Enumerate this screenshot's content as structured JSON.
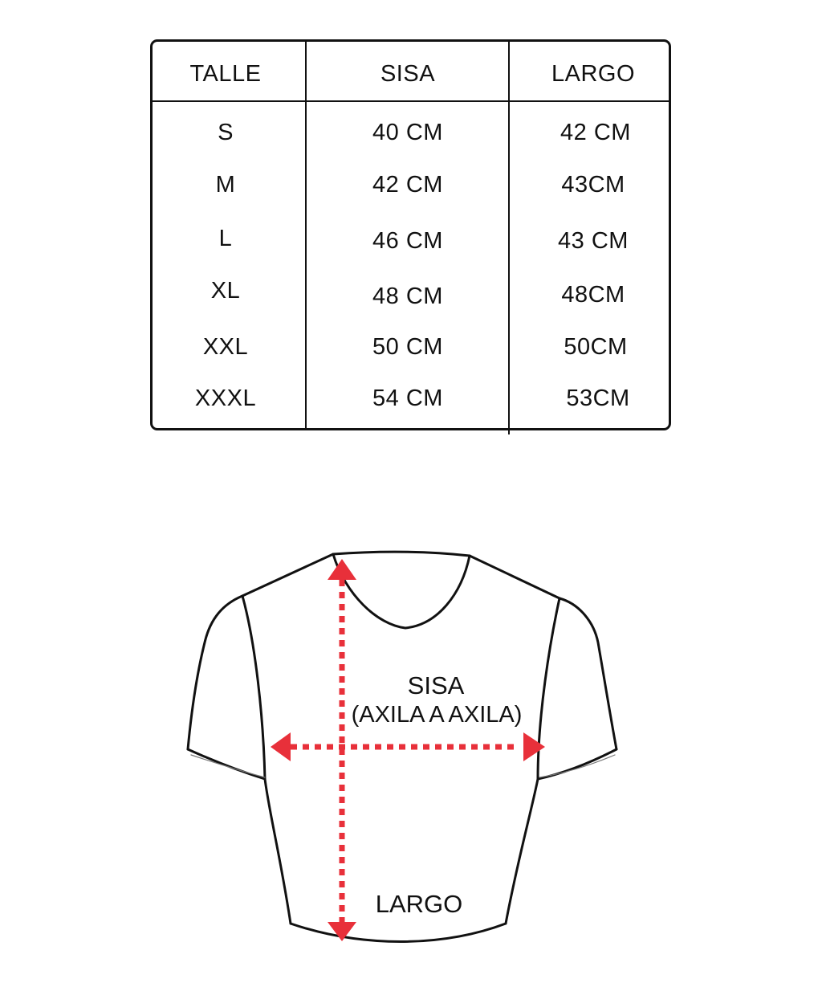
{
  "table": {
    "headers": [
      "TALLE",
      "SISA",
      "LARGO"
    ],
    "rows": [
      [
        "S",
        "40 CM",
        "42 CM"
      ],
      [
        "M",
        "42 CM",
        "43CM"
      ],
      [
        "L",
        "46 CM",
        "43 CM"
      ],
      [
        "XL",
        "48 CM",
        "48CM"
      ],
      [
        "XXL",
        "50 CM",
        "50CM"
      ],
      [
        "XXXL",
        "54 CM",
        "53CM"
      ]
    ]
  },
  "diagram": {
    "sisa_label": "SISA",
    "sisa_sub": "(AXILA A AXILA)",
    "largo_label": "LARGO",
    "arrow_color": "#e8303a",
    "outline_color": "#111111"
  }
}
